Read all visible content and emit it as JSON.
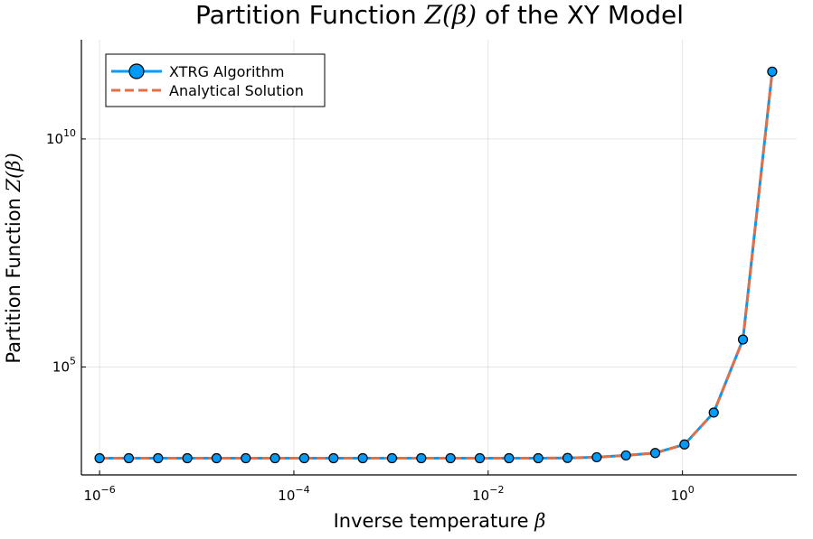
{
  "chart_data": {
    "type": "line",
    "title": {
      "prefix": "Partition Function ",
      "math": "Z(β)",
      "suffix": " of the XY Model"
    },
    "xlabel": {
      "text": "Inverse temperature ",
      "math": "β"
    },
    "ylabel": {
      "text": "Partition Function ",
      "math": "Z(β)"
    },
    "x_scale": "log",
    "y_scale": "log",
    "xlim": [
      6.5e-07,
      15
    ],
    "ylim": [
      430,
      1500000000000.0
    ],
    "x_ticks": [
      {
        "value": 1e-06,
        "base": "10",
        "exp": "−6"
      },
      {
        "value": 0.0001,
        "base": "10",
        "exp": "−4"
      },
      {
        "value": 0.01,
        "base": "10",
        "exp": "−2"
      },
      {
        "value": 1,
        "base": "10",
        "exp": "0"
      }
    ],
    "y_ticks": [
      {
        "value": 100000,
        "base": "10",
        "exp": "5"
      },
      {
        "value": 10000000000,
        "base": "10",
        "exp": "10"
      }
    ],
    "grid": true,
    "legend_position": "top-left",
    "x": [
      1e-06,
      2e-06,
      4e-06,
      8e-06,
      1.6e-05,
      3.2e-05,
      6.4e-05,
      0.000128,
      0.000256,
      0.000512,
      0.001024,
      0.002048,
      0.004096,
      0.008192,
      0.016384,
      0.032768,
      0.065536,
      0.131072,
      0.262144,
      0.524288,
      1.048576,
      2.097152,
      4.194304,
      8.388608
    ],
    "series": [
      {
        "name": "XTRG Algorithm",
        "color": "#009af9",
        "style": "solid-with-markers",
        "values": [
          1000,
          1000,
          1000,
          1000,
          1000,
          1000,
          1000,
          1000,
          1000,
          1000,
          1000,
          1000,
          1000,
          1000,
          1000,
          1000,
          1010,
          1050,
          1150,
          1300,
          2000,
          10000,
          400000,
          300000000000.0
        ]
      },
      {
        "name": "Analytical Solution",
        "color": "#e26f46",
        "style": "dashed",
        "values": [
          1000,
          1000,
          1000,
          1000,
          1000,
          1000,
          1000,
          1000,
          1000,
          1000,
          1000,
          1000,
          1000,
          1000,
          1000,
          1000,
          1010,
          1050,
          1150,
          1300,
          2000,
          10000,
          400000,
          300000000000.0
        ]
      }
    ]
  }
}
